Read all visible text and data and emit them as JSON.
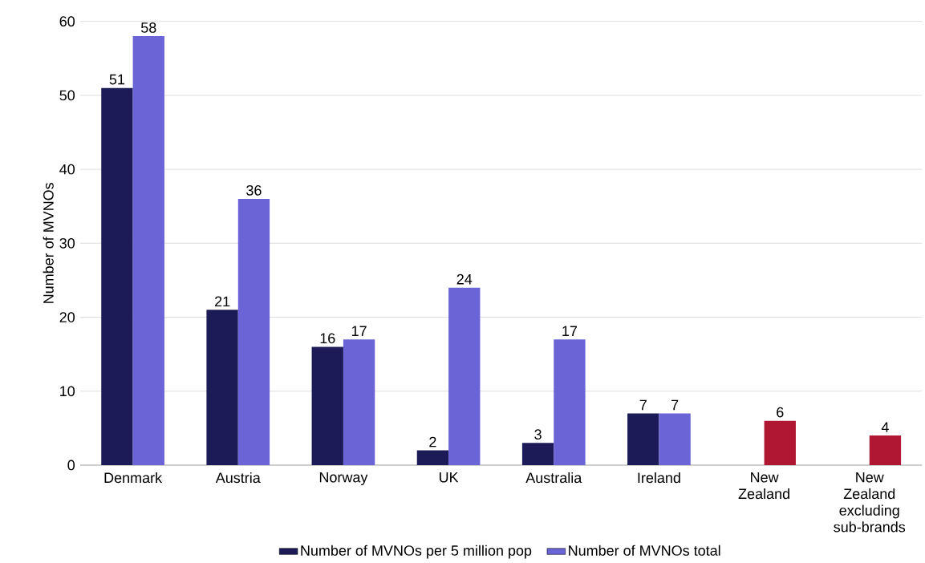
{
  "chart_data": {
    "type": "bar",
    "ylabel": "Number of MVNOs",
    "categories": [
      "Denmark",
      "Austria",
      "Norway",
      "UK",
      "Australia",
      "Ireland",
      "New Zealand",
      "New Zealand excluding sub-brands"
    ],
    "series": [
      {
        "name": "Number of MVNOs per 5 million pop",
        "color": "#1c1a57",
        "values": [
          51,
          21,
          16,
          2,
          3,
          7,
          null,
          null
        ]
      },
      {
        "name": "Number of MVNOs total",
        "color": "#6a64d6",
        "colors": [
          "#6a64d6",
          "#6a64d6",
          "#6a64d6",
          "#6a64d6",
          "#6a64d6",
          "#6a64d6",
          "#b01732",
          "#b01732"
        ],
        "values": [
          58,
          36,
          17,
          24,
          17,
          7,
          6,
          4
        ]
      }
    ],
    "ylim": [
      0,
      60
    ],
    "yticks": [
      0,
      10,
      20,
      30,
      40,
      50,
      60
    ],
    "grid": "y",
    "legend": "bottom",
    "data_labels": true
  }
}
